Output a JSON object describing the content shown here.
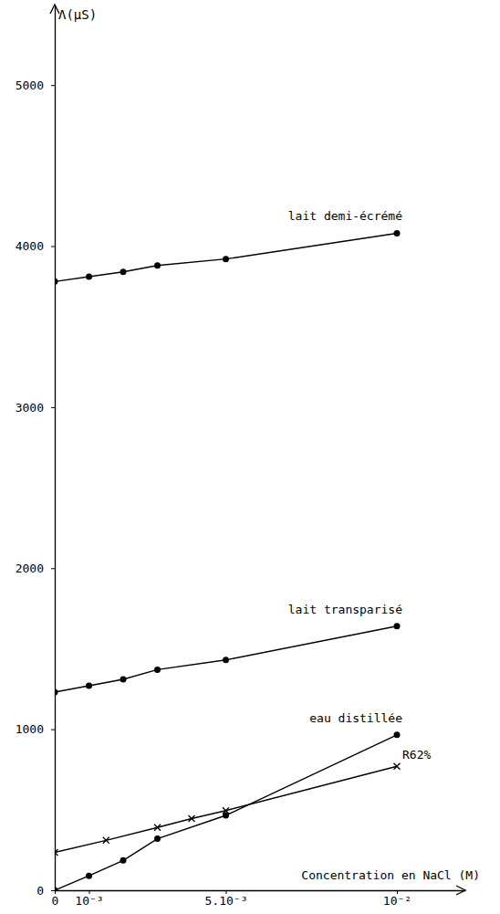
{
  "chart_data": {
    "type": "line",
    "y_label": "Λ(µS)",
    "x_label": "Concentration en NaCl (M)",
    "xlim": [
      0,
      0.012
    ],
    "ylim": [
      0,
      5500
    ],
    "xticks": [
      0,
      {
        "value": 0.001,
        "label": "10⁻³"
      },
      {
        "value": 0.005,
        "label": "5.10⁻³"
      },
      {
        "value": 0.01,
        "label": "10⁻²"
      }
    ],
    "yticks": [
      0,
      1000,
      2000,
      3000,
      4000,
      5000
    ],
    "grid": false,
    "color": "#000000",
    "series": [
      {
        "name": "lait demi-écrémé",
        "color": "#000000",
        "marker": "circle",
        "line_style": "solid",
        "x": [
          0,
          0.001,
          0.002,
          0.003,
          0.005,
          0.01
        ],
        "values": [
          3780,
          3810,
          3840,
          3880,
          3920,
          4080
        ]
      },
      {
        "name": "lait transparisé",
        "color": "#000000",
        "marker": "circle",
        "line_style": "solid",
        "x": [
          0,
          0.001,
          0.002,
          0.003,
          0.005,
          0.01
        ],
        "values": [
          1230,
          1270,
          1310,
          1370,
          1430,
          1640
        ]
      },
      {
        "name": "eau distillée",
        "color": "#000000",
        "marker": "circle",
        "line_style": "solid",
        "x": [
          0,
          0.001,
          0.002,
          0.003,
          0.005,
          0.01
        ],
        "values": [
          0,
          90,
          185,
          320,
          465,
          965
        ]
      },
      {
        "name": "R62%",
        "color": "#000000",
        "marker": "x",
        "line_style": "solid",
        "x": [
          0,
          0.0015,
          0.003,
          0.004,
          0.005,
          0.01
        ],
        "values": [
          235,
          310,
          390,
          445,
          495,
          770
        ]
      }
    ]
  }
}
